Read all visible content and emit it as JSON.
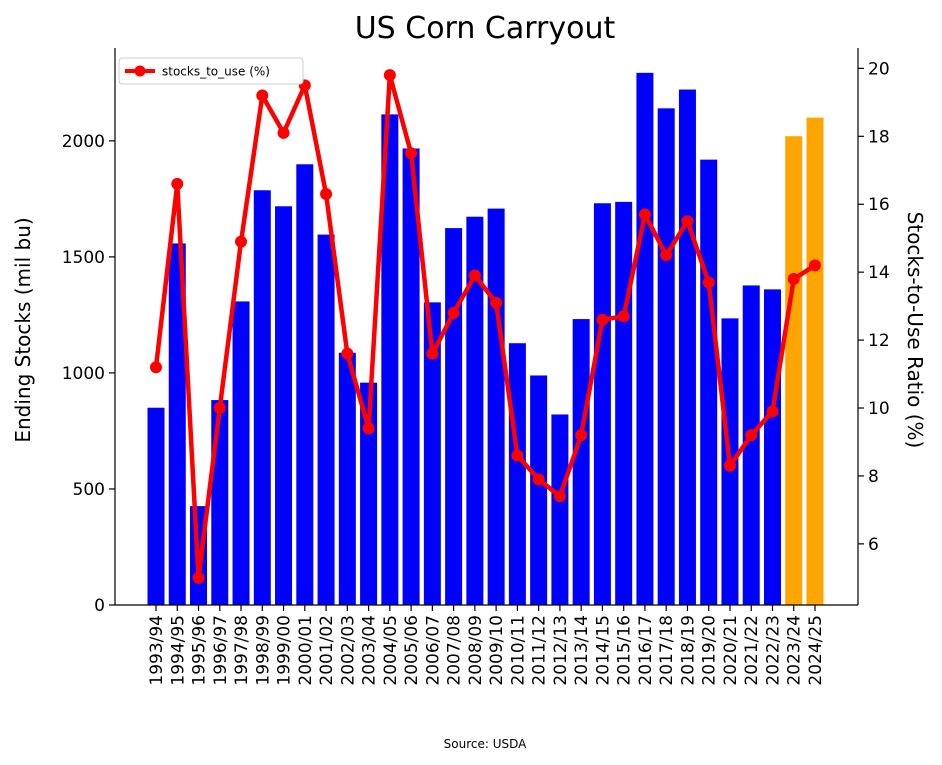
{
  "chart_data": {
    "type": "bar",
    "title": "US Corn Carryout",
    "ylabel": "Ending Stocks (mil bu)",
    "y2label": "Stocks-to-Use Ratio (%)",
    "source": "Source: USDA",
    "ylim": [
      0,
      2400
    ],
    "y2lim": [
      4.2,
      20.6
    ],
    "yticks": [
      0,
      500,
      1000,
      1500,
      2000
    ],
    "y2ticks": [
      6,
      8,
      10,
      12,
      14,
      16,
      18,
      20
    ],
    "legend_position": "top-left",
    "categories": [
      "1993/94",
      "1994/95",
      "1995/96",
      "1996/97",
      "1997/98",
      "1998/99",
      "1999/00",
      "2000/01",
      "2001/02",
      "2002/03",
      "2003/04",
      "2004/05",
      "2005/06",
      "2006/07",
      "2007/08",
      "2008/09",
      "2009/10",
      "2010/11",
      "2011/12",
      "2012/13",
      "2013/14",
      "2014/15",
      "2015/16",
      "2016/17",
      "2017/18",
      "2018/19",
      "2019/20",
      "2020/21",
      "2021/22",
      "2022/23",
      "2023/24",
      "2024/25"
    ],
    "series": [
      {
        "kind": "bar",
        "values": [
          850,
          1558,
          426,
          883,
          1308,
          1787,
          1718,
          1899,
          1596,
          1087,
          958,
          2114,
          1967,
          1304,
          1624,
          1673,
          1708,
          1128,
          989,
          821,
          1232,
          1731,
          1737,
          2293,
          2140,
          2221,
          1919,
          1235,
          1377,
          1360,
          2020,
          2100
        ],
        "colors": [
          "#0000ff",
          "#0000ff",
          "#0000ff",
          "#0000ff",
          "#0000ff",
          "#0000ff",
          "#0000ff",
          "#0000ff",
          "#0000ff",
          "#0000ff",
          "#0000ff",
          "#0000ff",
          "#0000ff",
          "#0000ff",
          "#0000ff",
          "#0000ff",
          "#0000ff",
          "#0000ff",
          "#0000ff",
          "#0000ff",
          "#0000ff",
          "#0000ff",
          "#0000ff",
          "#0000ff",
          "#0000ff",
          "#0000ff",
          "#0000ff",
          "#0000ff",
          "#0000ff",
          "#0000ff",
          "#ffa500",
          "#ffa500"
        ]
      },
      {
        "kind": "line",
        "name": "stocks_to_use (%)",
        "color": "#ff0000",
        "values": [
          11.2,
          16.6,
          5.0,
          10.0,
          14.9,
          19.2,
          18.1,
          19.5,
          16.3,
          11.6,
          9.4,
          19.8,
          17.5,
          11.6,
          12.8,
          13.9,
          13.1,
          8.6,
          7.9,
          7.4,
          9.2,
          12.6,
          12.7,
          15.7,
          14.5,
          15.5,
          13.7,
          8.3,
          9.2,
          9.9,
          13.8,
          14.2
        ]
      }
    ]
  }
}
